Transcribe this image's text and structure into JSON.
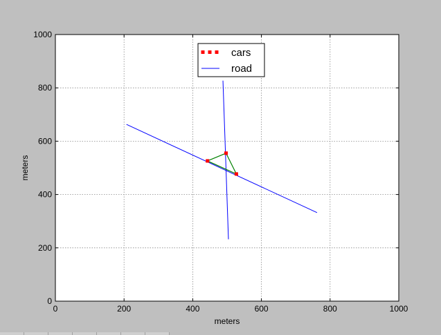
{
  "chart_data": {
    "type": "line",
    "title": "",
    "xlabel": "meters",
    "ylabel": "meters",
    "xlim": [
      0,
      1000
    ],
    "ylim": [
      0,
      1000
    ],
    "xticks": [
      "0",
      "200",
      "400",
      "600",
      "800",
      "1000"
    ],
    "yticks": [
      "0",
      "200",
      "400",
      "600",
      "800",
      "1000"
    ],
    "xtick_values": [
      0,
      200,
      400,
      600,
      800,
      1000
    ],
    "ytick_values": [
      0,
      200,
      400,
      600,
      800,
      1000
    ],
    "grid": true,
    "legend_position": "top-center",
    "legend": [
      {
        "label": "cars",
        "style": "dotted-markers",
        "color": "#ff0000"
      },
      {
        "label": "road",
        "style": "line",
        "color": "#0000ff"
      }
    ],
    "series": [
      {
        "name": "road",
        "kind": "line",
        "color": "#0000ff",
        "points": [
          [
            207,
            663
          ],
          [
            762,
            332
          ]
        ]
      },
      {
        "name": "road",
        "kind": "line",
        "color": "#0000ff",
        "points": [
          [
            488,
            827
          ],
          [
            504,
            232
          ]
        ]
      },
      {
        "kind": "polygon",
        "color": "#008000",
        "points": [
          [
            443,
            526
          ],
          [
            497,
            555
          ],
          [
            527,
            477
          ]
        ]
      },
      {
        "name": "cars",
        "kind": "markers",
        "color": "#ff0000",
        "points": [
          [
            443,
            526
          ],
          [
            497,
            555
          ],
          [
            527,
            477
          ]
        ]
      }
    ]
  },
  "colors": {
    "window_background": "#bfbfbf",
    "plot_background": "#ffffff",
    "grid": "#888888",
    "road": "#0000ff",
    "cars": "#ff0000",
    "car_polygon": "#008000"
  }
}
